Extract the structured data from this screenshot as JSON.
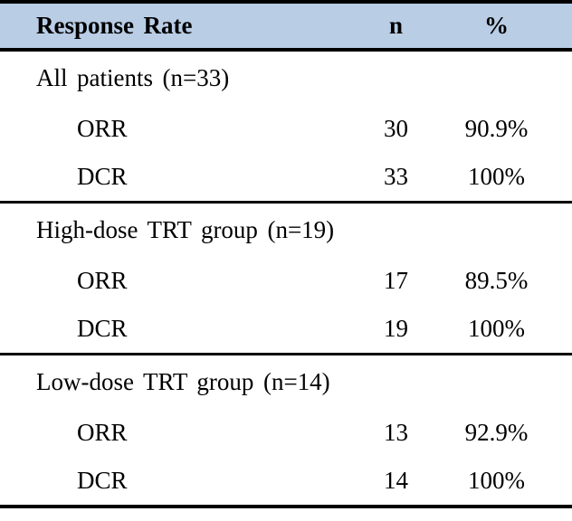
{
  "table": {
    "header": {
      "response_rate": "Response Rate",
      "n": "n",
      "percent": "%"
    },
    "sections": [
      {
        "group_label": "All patients (n=33)",
        "rows": [
          {
            "label": "ORR",
            "n": "30",
            "pct": "90.9%"
          },
          {
            "label": "DCR",
            "n": "33",
            "pct": "100%"
          }
        ]
      },
      {
        "group_label": "High-dose TRT group (n=19)",
        "rows": [
          {
            "label": "ORR",
            "n": "17",
            "pct": "89.5%"
          },
          {
            "label": "DCR",
            "n": "19",
            "pct": "100%"
          }
        ]
      },
      {
        "group_label": "Low-dose TRT group (n=14)",
        "rows": [
          {
            "label": "ORR",
            "n": "13",
            "pct": "92.9%"
          },
          {
            "label": "DCR",
            "n": "14",
            "pct": "100%"
          }
        ]
      }
    ],
    "colors": {
      "header_bg": "#b9cde5",
      "border": "#000000",
      "text": "#000000"
    }
  }
}
